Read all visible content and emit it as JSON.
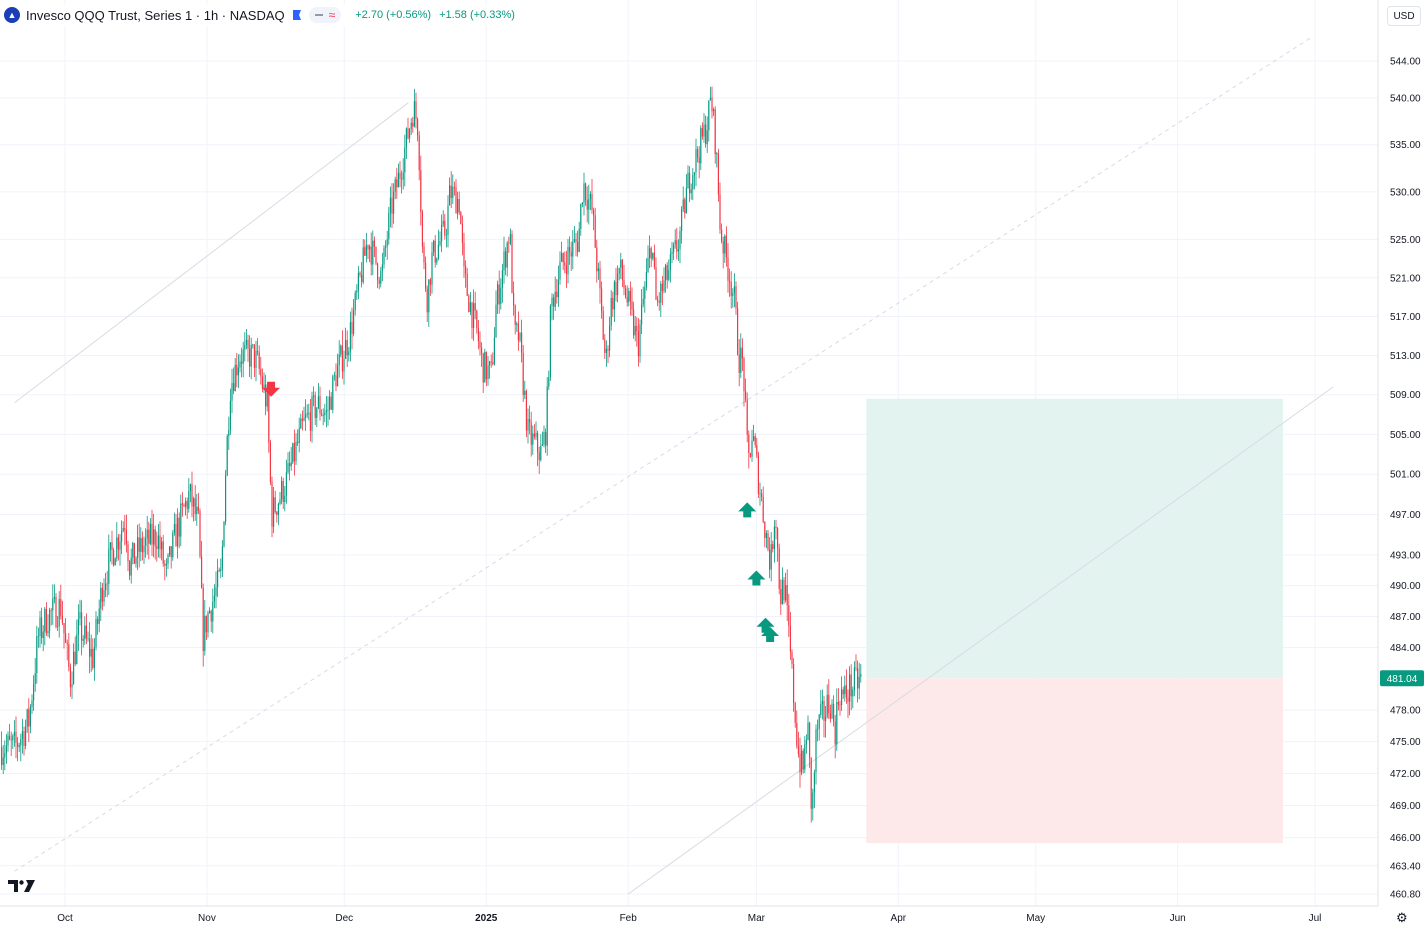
{
  "header": {
    "symbol_title": "Invesco QQQ Trust, Series 1 · 1h · NASDAQ",
    "change_1": "+2.70 (+0.56%)",
    "change_2": "+1.58 (+0.33%)",
    "logo_icon": "invesco-logo-icon"
  },
  "currency_label": "USD",
  "colors": {
    "up": "#089981",
    "down": "#f23645",
    "profit_zone": "#e3f4f0",
    "loss_zone": "#fde9ea",
    "price_tag": "#089981"
  },
  "chart_data": {
    "type": "candlestick",
    "y_axis": {
      "min": 460.8,
      "max": 546.5,
      "scale": "log",
      "position": "right",
      "tick_labels": [
        "544.00",
        "540.00",
        "535.00",
        "530.00",
        "525.00",
        "521.00",
        "517.00",
        "513.00",
        "509.00",
        "505.00",
        "501.00",
        "497.00",
        "493.00",
        "490.00",
        "487.00",
        "484.00",
        "478.00",
        "475.00",
        "472.00",
        "469.00",
        "466.00",
        "463.40",
        "460.80"
      ]
    },
    "x_axis": {
      "start": "2024-09-20",
      "end": "2025-07-10",
      "tick_labels": [
        {
          "label": "Oct",
          "date": "2024-10-01",
          "bold": false
        },
        {
          "label": "Nov",
          "date": "2024-11-01",
          "bold": false
        },
        {
          "label": "Dec",
          "date": "2024-12-01",
          "bold": false
        },
        {
          "label": "2025",
          "date": "2025-01-01",
          "bold": true
        },
        {
          "label": "Feb",
          "date": "2025-02-01",
          "bold": false
        },
        {
          "label": "Mar",
          "date": "2025-03-01",
          "bold": false
        },
        {
          "label": "Apr",
          "date": "2025-04-01",
          "bold": false
        },
        {
          "label": "May",
          "date": "2025-05-01",
          "bold": false
        },
        {
          "label": "Jun",
          "date": "2025-06-01",
          "bold": false
        },
        {
          "label": "Jul",
          "date": "2025-07-01",
          "bold": false
        }
      ]
    },
    "grid": true,
    "last_price": "481.04",
    "price_path": [
      [
        "2024-09-20",
        474.5
      ],
      [
        "2024-09-23",
        477.0
      ],
      [
        "2024-09-25",
        485.0
      ],
      [
        "2024-09-27",
        487.0
      ],
      [
        "2024-09-30",
        488.0
      ],
      [
        "2024-10-01",
        484.0
      ],
      [
        "2024-10-02",
        481.0
      ],
      [
        "2024-10-04",
        486.0
      ],
      [
        "2024-10-07",
        483.0
      ],
      [
        "2024-10-09",
        490.0
      ],
      [
        "2024-10-11",
        493.0
      ],
      [
        "2024-10-14",
        496.5
      ],
      [
        "2024-10-15",
        492.0
      ],
      [
        "2024-10-17",
        493.5
      ],
      [
        "2024-10-21",
        495.0
      ],
      [
        "2024-10-23",
        491.0
      ],
      [
        "2024-10-25",
        495.0
      ],
      [
        "2024-10-28",
        499.0
      ],
      [
        "2024-10-30",
        496.0
      ],
      [
        "2024-10-31",
        485.0
      ],
      [
        "2024-11-01",
        487.0
      ],
      [
        "2024-11-04",
        491.0
      ],
      [
        "2024-11-05",
        502.0
      ],
      [
        "2024-11-06",
        510.0
      ],
      [
        "2024-11-08",
        513.0
      ],
      [
        "2024-11-11",
        513.0
      ],
      [
        "2024-11-12",
        512.0
      ],
      [
        "2024-11-14",
        508.0
      ],
      [
        "2024-11-15",
        497.0
      ],
      [
        "2024-11-18",
        500.0
      ],
      [
        "2024-11-20",
        503.0
      ],
      [
        "2024-11-22",
        506.0
      ],
      [
        "2024-11-25",
        508.0
      ],
      [
        "2024-11-27",
        507.0
      ],
      [
        "2024-11-29",
        511.0
      ],
      [
        "2024-12-02",
        515.0
      ],
      [
        "2024-12-04",
        520.0
      ],
      [
        "2024-12-06",
        525.0
      ],
      [
        "2024-12-09",
        521.0
      ],
      [
        "2024-12-11",
        528.0
      ],
      [
        "2024-12-13",
        532.0
      ],
      [
        "2024-12-16",
        539.0
      ],
      [
        "2024-12-17",
        537.0
      ],
      [
        "2024-12-18",
        523.0
      ],
      [
        "2024-12-19",
        519.0
      ],
      [
        "2024-12-20",
        523.0
      ],
      [
        "2024-12-23",
        526.0
      ],
      [
        "2024-12-24",
        530.0
      ],
      [
        "2024-12-26",
        529.0
      ],
      [
        "2024-12-27",
        521.0
      ],
      [
        "2024-12-30",
        515.0
      ],
      [
        "2024-12-31",
        512.0
      ],
      [
        "2025-01-02",
        511.0
      ],
      [
        "2025-01-03",
        518.0
      ],
      [
        "2025-01-06",
        526.0
      ],
      [
        "2025-01-07",
        515.0
      ],
      [
        "2025-01-08",
        515.0
      ],
      [
        "2025-01-10",
        505.0
      ],
      [
        "2025-01-13",
        503.0
      ],
      [
        "2025-01-14",
        506.0
      ],
      [
        "2025-01-15",
        518.0
      ],
      [
        "2025-01-17",
        522.0
      ],
      [
        "2025-01-21",
        525.0
      ],
      [
        "2025-01-22",
        531.0
      ],
      [
        "2025-01-24",
        528.0
      ],
      [
        "2025-01-27",
        512.0
      ],
      [
        "2025-01-28",
        518.0
      ],
      [
        "2025-01-30",
        522.0
      ],
      [
        "2025-01-31",
        520.0
      ],
      [
        "2025-02-03",
        514.0
      ],
      [
        "2025-02-04",
        518.0
      ],
      [
        "2025-02-06",
        525.0
      ],
      [
        "2025-02-07",
        518.0
      ],
      [
        "2025-02-10",
        522.0
      ],
      [
        "2025-02-12",
        525.0
      ],
      [
        "2025-02-14",
        531.0
      ],
      [
        "2025-02-18",
        537.0
      ],
      [
        "2025-02-19",
        540.0
      ],
      [
        "2025-02-20",
        535.0
      ],
      [
        "2025-02-21",
        526.0
      ],
      [
        "2025-02-24",
        519.0
      ],
      [
        "2025-02-25",
        513.0
      ],
      [
        "2025-02-26",
        512.0
      ],
      [
        "2025-02-27",
        502.0
      ],
      [
        "2025-02-28",
        505.0
      ],
      [
        "2025-03-03",
        495.0
      ],
      [
        "2025-03-04",
        492.0
      ],
      [
        "2025-03-05",
        498.0
      ],
      [
        "2025-03-06",
        489.0
      ],
      [
        "2025-03-07",
        490.0
      ],
      [
        "2025-03-10",
        474.0
      ],
      [
        "2025-03-11",
        472.0
      ],
      [
        "2025-03-12",
        477.0
      ],
      [
        "2025-03-13",
        468.0
      ],
      [
        "2025-03-14",
        476.0
      ],
      [
        "2025-03-17",
        479.0
      ],
      [
        "2025-03-18",
        476.0
      ],
      [
        "2025-03-19",
        480.0
      ],
      [
        "2025-03-20",
        479.0
      ],
      [
        "2025-03-21",
        480.0
      ],
      [
        "2025-03-24",
        481.04
      ]
    ],
    "signal_markers": [
      {
        "type": "sell",
        "date": "2024-11-15",
        "price": 509.5
      },
      {
        "type": "buy",
        "date": "2025-02-27",
        "price": 497.5
      },
      {
        "type": "buy",
        "date": "2025-03-01",
        "price": 490.8
      },
      {
        "type": "buy",
        "date": "2025-03-03",
        "price": 486.2
      },
      {
        "type": "buy",
        "date": "2025-03-04",
        "price": 485.3
      }
    ],
    "trend_lines": [
      {
        "style": "solid",
        "from": [
          "2024-09-20",
          508.2
        ],
        "to": [
          "2024-12-15",
          539.5
        ]
      },
      {
        "style": "dashed",
        "from": [
          "2024-09-20",
          462.9
        ],
        "to": [
          "2025-06-30",
          546.5
        ]
      },
      {
        "style": "solid",
        "from": [
          "2025-02-01",
          460.8
        ],
        "to": [
          "2025-07-05",
          509.8
        ]
      }
    ],
    "position_zones": {
      "start": "2025-03-25",
      "end": "2025-06-24",
      "entry": 481.04,
      "target": 508.6,
      "stop": 465.5
    }
  }
}
